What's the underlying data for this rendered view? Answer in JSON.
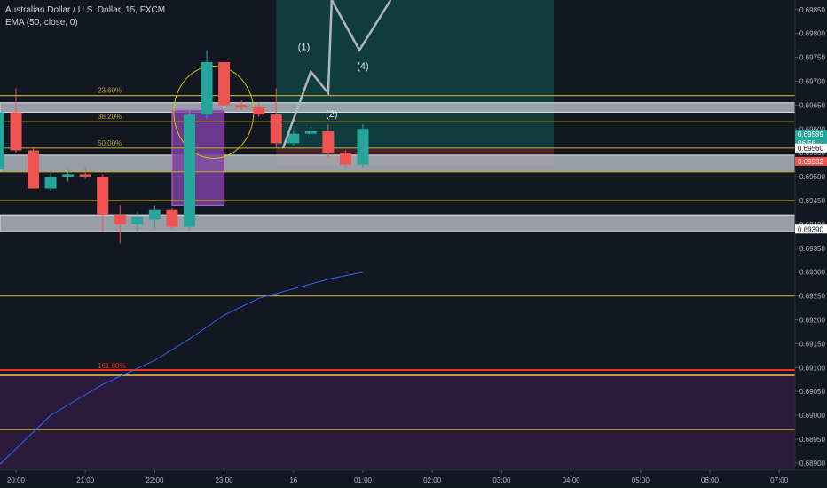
{
  "header": {
    "symbol_line": "Australian Dollar / U.S. Dollar, 15, FXCM",
    "indicator_line": "EMA (50, close, 0)"
  },
  "colors": {
    "background": "#131722",
    "bull": "#26a69a",
    "bear": "#ef5350",
    "fib_line": "#b8a02e",
    "ema": "#2962ff",
    "zone_gray": "#b2b5be",
    "target_box": "#0f3e3e",
    "purple_box": "#7b3fa0",
    "purple_zone": "#2a1b3d",
    "red_line": "#ff2a2a",
    "wave": "#b2b5be",
    "circle": "#d4c400",
    "axis_text": "#b2b5be"
  },
  "chart_data": {
    "type": "candlestick",
    "symbol": "Australian Dollar / U.S. Dollar",
    "timeframe": "15",
    "source": "FXCM",
    "ylim": [
      0.68885,
      0.6987
    ],
    "y_ticks": [
      "0.69850",
      "0.69800",
      "0.69750",
      "0.69700",
      "0.69650",
      "0.69600",
      "0.69550",
      "0.69500",
      "0.69450",
      "0.69400",
      "0.69350",
      "0.69300",
      "0.69250",
      "0.69200",
      "0.69150",
      "0.69100",
      "0.69050",
      "0.69000",
      "0.68950",
      "0.68900"
    ],
    "x_ticks": [
      {
        "label": "20:00",
        "t": 20.0
      },
      {
        "label": "21:00",
        "t": 21.0
      },
      {
        "label": "22:00",
        "t": 22.0
      },
      {
        "label": "23:00",
        "t": 23.0
      },
      {
        "label": "16",
        "t": 24.0
      },
      {
        "label": "01:00",
        "t": 25.0
      },
      {
        "label": "02:00",
        "t": 26.0
      },
      {
        "label": "03:00",
        "t": 27.0
      },
      {
        "label": "04:00",
        "t": 28.0
      },
      {
        "label": "05:00",
        "t": 29.0
      },
      {
        "label": "06:00",
        "t": 30.0
      },
      {
        "label": "07:00",
        "t": 31.0
      }
    ],
    "candles": [
      {
        "t": 19.75,
        "o": 0.69515,
        "h": 0.6967,
        "l": 0.69505,
        "c": 0.69635
      },
      {
        "t": 20.0,
        "o": 0.69635,
        "h": 0.69685,
        "l": 0.6955,
        "c": 0.69555
      },
      {
        "t": 20.25,
        "o": 0.69555,
        "h": 0.6956,
        "l": 0.69475,
        "c": 0.69475
      },
      {
        "t": 20.5,
        "o": 0.69475,
        "h": 0.6951,
        "l": 0.6947,
        "c": 0.695
      },
      {
        "t": 20.75,
        "o": 0.695,
        "h": 0.69515,
        "l": 0.6949,
        "c": 0.69505
      },
      {
        "t": 21.0,
        "o": 0.69505,
        "h": 0.6952,
        "l": 0.69495,
        "c": 0.695
      },
      {
        "t": 21.25,
        "o": 0.695,
        "h": 0.69505,
        "l": 0.69385,
        "c": 0.6942
      },
      {
        "t": 21.5,
        "o": 0.6942,
        "h": 0.6944,
        "l": 0.6936,
        "c": 0.694
      },
      {
        "t": 21.75,
        "o": 0.694,
        "h": 0.69425,
        "l": 0.69385,
        "c": 0.69415
      },
      {
        "t": 22.0,
        "o": 0.6941,
        "h": 0.6944,
        "l": 0.6939,
        "c": 0.6943
      },
      {
        "t": 22.25,
        "o": 0.6943,
        "h": 0.69435,
        "l": 0.6939,
        "c": 0.69395
      },
      {
        "t": 22.5,
        "o": 0.69395,
        "h": 0.6964,
        "l": 0.6939,
        "c": 0.6963
      },
      {
        "t": 22.75,
        "o": 0.6963,
        "h": 0.69765,
        "l": 0.6962,
        "c": 0.6974
      },
      {
        "t": 23.0,
        "o": 0.6974,
        "h": 0.6974,
        "l": 0.69645,
        "c": 0.6965
      },
      {
        "t": 23.25,
        "o": 0.6965,
        "h": 0.6966,
        "l": 0.6964,
        "c": 0.69645
      },
      {
        "t": 23.5,
        "o": 0.69645,
        "h": 0.69655,
        "l": 0.69625,
        "c": 0.6963
      },
      {
        "t": 23.75,
        "o": 0.6963,
        "h": 0.69685,
        "l": 0.6956,
        "c": 0.6957
      },
      {
        "t": 24.0,
        "o": 0.6957,
        "h": 0.69595,
        "l": 0.69565,
        "c": 0.6959
      },
      {
        "t": 24.25,
        "o": 0.6959,
        "h": 0.69605,
        "l": 0.6958,
        "c": 0.69595
      },
      {
        "t": 24.5,
        "o": 0.69595,
        "h": 0.6961,
        "l": 0.6954,
        "c": 0.6955
      },
      {
        "t": 24.75,
        "o": 0.6955,
        "h": 0.69555,
        "l": 0.6952,
        "c": 0.69525
      },
      {
        "t": 25.0,
        "o": 0.69525,
        "h": 0.6961,
        "l": 0.6952,
        "c": 0.696
      }
    ],
    "ema": [
      {
        "t": 19.75,
        "v": 0.68895
      },
      {
        "t": 20.5,
        "v": 0.69
      },
      {
        "t": 21.25,
        "v": 0.69065
      },
      {
        "t": 22.0,
        "v": 0.69115
      },
      {
        "t": 22.5,
        "v": 0.6916
      },
      {
        "t": 23.0,
        "v": 0.6921
      },
      {
        "t": 23.5,
        "v": 0.69245
      },
      {
        "t": 24.0,
        "v": 0.69265
      },
      {
        "t": 24.5,
        "v": 0.69285
      },
      {
        "t": 25.0,
        "v": 0.693
      }
    ],
    "fib_levels": [
      {
        "label": "23.60%",
        "price": 0.6967
      },
      {
        "label": "38.20%",
        "price": 0.69615
      },
      {
        "label": "50.00%",
        "price": 0.6956
      },
      {
        "label": "",
        "price": 0.6951
      },
      {
        "label": "",
        "price": 0.6945
      },
      {
        "label": "",
        "price": 0.6925
      },
      {
        "label": "",
        "price": 0.6897
      }
    ],
    "extension_level": {
      "label": "161.80%",
      "price": 0.69095
    },
    "zones": [
      {
        "kind": "resistance",
        "from": 0.69635,
        "to": 0.69655
      },
      {
        "kind": "support",
        "from": 0.6951,
        "to": 0.69545
      },
      {
        "kind": "support",
        "from": 0.69385,
        "to": 0.6942
      }
    ],
    "price_labels": [
      {
        "value": "0.69589",
        "sub": "06:56",
        "kind": "current",
        "price": 0.69589
      },
      {
        "value": "0.69560",
        "kind": "marker",
        "price": 0.6956
      },
      {
        "value": "0.69532",
        "kind": "marker",
        "price": 0.69532
      },
      {
        "value": "0.69390",
        "kind": "marker",
        "price": 0.6939
      }
    ],
    "wave_labels": [
      "(1)",
      "(2)",
      "(4)"
    ],
    "wave_path": [
      {
        "t": 23.85,
        "p": 0.6956
      },
      {
        "t": 24.25,
        "p": 0.6972
      },
      {
        "t": 24.5,
        "p": 0.69675
      },
      {
        "t": 24.55,
        "p": 0.6987
      },
      {
        "t": 24.95,
        "p": 0.69765
      },
      {
        "t": 25.4,
        "p": 0.6987
      }
    ],
    "target_box": {
      "t1": 23.75,
      "t2": 27.75,
      "p1": 0.6956,
      "p2": 0.6987
    },
    "stop_box": {
      "t1": 23.75,
      "t2": 27.75,
      "p1": 0.69525,
      "p2": 0.6956
    },
    "purple_box": {
      "t1": 22.25,
      "t2": 23.0,
      "p1": 0.6944,
      "p2": 0.6964
    },
    "purple_zone_from": 0.68885,
    "purple_zone_to": 0.69085
  }
}
